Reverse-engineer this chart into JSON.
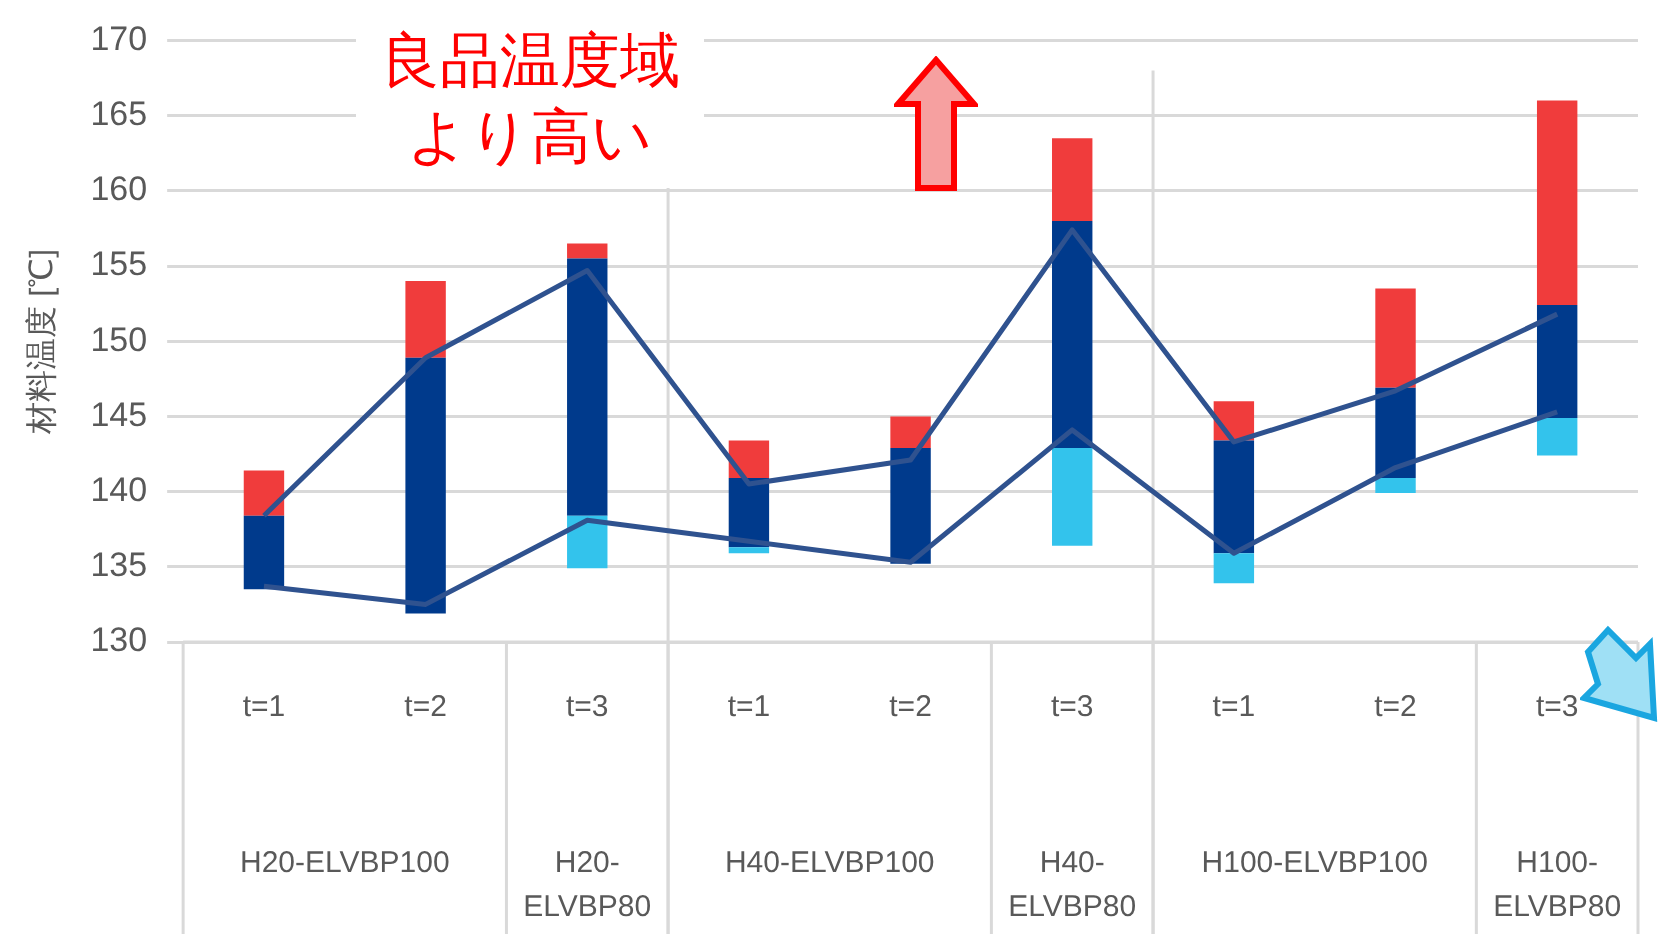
{
  "chart_data": {
    "type": "bar",
    "ylabel": "材料温度 [℃]",
    "categories": [
      "t=1",
      "t=2",
      "t=3",
      "t=1",
      "t=2",
      "t=3",
      "t=1",
      "t=2",
      "t=3"
    ],
    "series": [
      {
        "color": "#33c3ec",
        "base": [
          null,
          null,
          134.9,
          135.9,
          null,
          136.4,
          133.9,
          139.9,
          142.4
        ],
        "values": [
          null,
          null,
          3.5,
          0.4,
          null,
          6.5,
          2.0,
          1.0,
          2.5
        ]
      },
      {
        "color": "#003a8c",
        "base": [
          133.5,
          131.9,
          138.4,
          136.3,
          135.2,
          142.9,
          135.9,
          140.9,
          144.9
        ],
        "values": [
          4.9,
          17.0,
          17.1,
          4.6,
          7.7,
          15.1,
          7.5,
          6.0,
          7.5
        ]
      },
      {
        "color": "#f03c3c",
        "base": [
          138.4,
          148.9,
          155.5,
          140.9,
          142.9,
          158.0,
          143.4,
          146.9,
          152.4
        ],
        "values": [
          3.0,
          5.1,
          1.0,
          2.5,
          2.1,
          5.5,
          2.6,
          6.6,
          13.6
        ]
      },
      {
        "type": "line",
        "color": "#2f528f",
        "values": [
          138.4,
          148.9,
          154.7,
          140.5,
          142.1,
          157.4,
          143.3,
          146.7,
          151.8
        ]
      },
      {
        "type": "line",
        "color": "#2f528f",
        "values": [
          133.7,
          132.5,
          138.1,
          136.7,
          135.3,
          144.1,
          135.9,
          141.6,
          145.3
        ]
      }
    ],
    "ylim": [
      130,
      170
    ],
    "yticks": [
      130,
      135,
      140,
      145,
      150,
      155,
      160,
      165,
      170
    ],
    "grid": "y",
    "legend": false,
    "marker": "none",
    "annotations": [
      "良品温度域より高い",
      "H20-ELVBP100",
      "H20-ELVBP80",
      "H40-ELVBP100",
      "H40-ELVBP80",
      "H100-ELVBP100",
      "H100-ELVBP80"
    ]
  }
}
